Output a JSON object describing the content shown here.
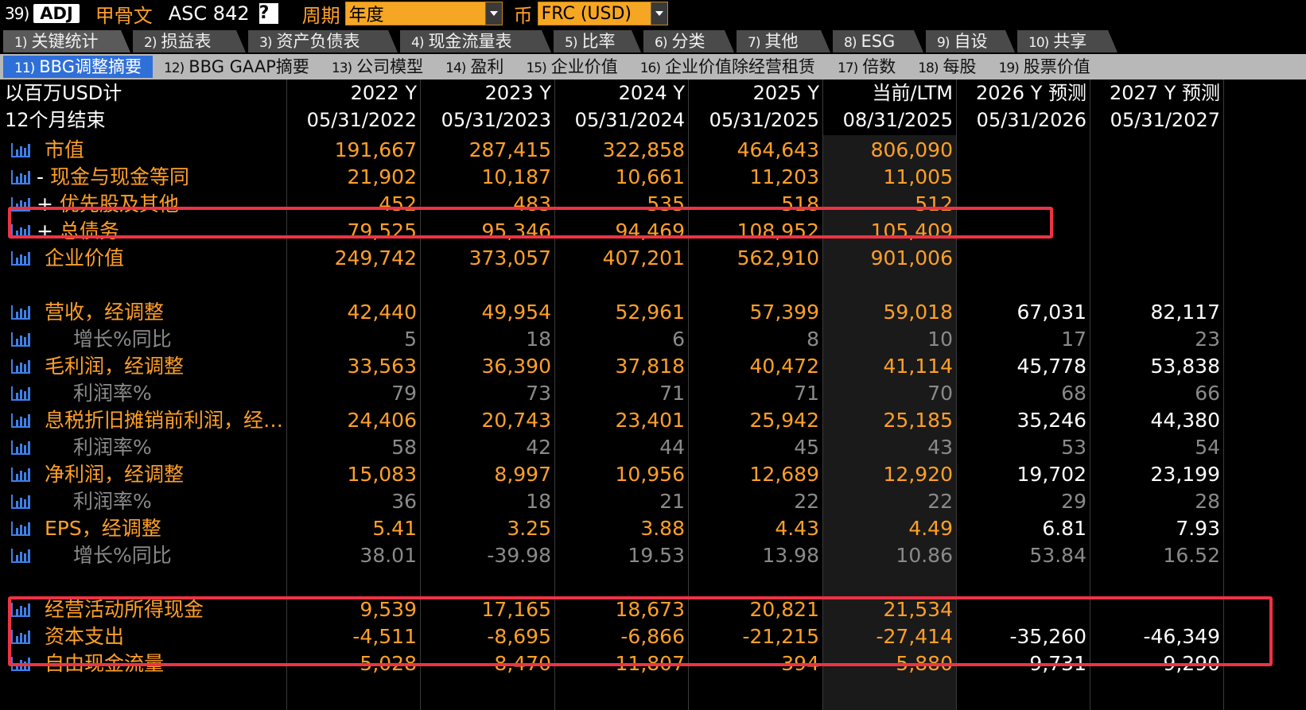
{
  "toolbar": {
    "num": "39)",
    "adj": "ADJ",
    "company": "甲骨文",
    "asc": "ASC 842",
    "help": "?",
    "period_label": "周期",
    "period_value": "年度",
    "currency_label": "币",
    "currency_value": "FRC (USD)"
  },
  "tabs_primary": [
    {
      "n": "1)",
      "label": "关键统计"
    },
    {
      "n": "2)",
      "label": "损益表"
    },
    {
      "n": "3)",
      "label": "资产负债表"
    },
    {
      "n": "4)",
      "label": "现金流量表"
    },
    {
      "n": "5)",
      "label": "比率"
    },
    {
      "n": "6)",
      "label": "分类"
    },
    {
      "n": "7)",
      "label": "其他"
    },
    {
      "n": "8)",
      "label": "ESG"
    },
    {
      "n": "9)",
      "label": "自设"
    },
    {
      "n": "10)",
      "label": "共享"
    }
  ],
  "tabs_secondary": [
    {
      "n": "11)",
      "label": "BBG调整摘要"
    },
    {
      "n": "12)",
      "label": "BBG GAAP摘要"
    },
    {
      "n": "13)",
      "label": "公司模型"
    },
    {
      "n": "14)",
      "label": "盈利"
    },
    {
      "n": "15)",
      "label": "企业价值"
    },
    {
      "n": "16)",
      "label": "企业价值除经营租赁"
    },
    {
      "n": "17)",
      "label": "倍数"
    },
    {
      "n": "18)",
      "label": "每股"
    },
    {
      "n": "19)",
      "label": "股票价值"
    }
  ],
  "header": {
    "unit_label": "以百万USD计",
    "period_end_label": "12个月结束",
    "columns": [
      {
        "year": "2022 Y",
        "date": "05/31/2022"
      },
      {
        "year": "2023 Y",
        "date": "05/31/2023"
      },
      {
        "year": "2024 Y",
        "date": "05/31/2024"
      },
      {
        "year": "2025 Y",
        "date": "05/31/2025"
      },
      {
        "year": "当前/LTM",
        "date": "08/31/2025"
      },
      {
        "year": "2026 Y 预测",
        "date": "05/31/2026"
      },
      {
        "year": "2027 Y 预测",
        "date": "05/31/2027"
      }
    ]
  },
  "rows": [
    {
      "label": "市值",
      "prefix": "",
      "type": "main",
      "values": [
        "191,667",
        "287,415",
        "322,858",
        "464,643",
        "806,090",
        "",
        ""
      ]
    },
    {
      "label": "现金与现金等同",
      "prefix": "- ",
      "type": "mainw",
      "values": [
        "21,902",
        "10,187",
        "10,661",
        "11,203",
        "11,005",
        "",
        ""
      ]
    },
    {
      "label": "优先股及其他",
      "prefix": "+ ",
      "type": "mainw",
      "values": [
        "452",
        "483",
        "535",
        "518",
        "512",
        "",
        ""
      ]
    },
    {
      "label": "总债务",
      "prefix": "+ ",
      "type": "mainw",
      "values": [
        "79,525",
        "95,346",
        "94,469",
        "108,952",
        "105,409",
        "",
        ""
      ]
    },
    {
      "label": "企业价值",
      "prefix": "",
      "type": "main",
      "values": [
        "249,742",
        "373,057",
        "407,201",
        "562,910",
        "901,006",
        "",
        ""
      ]
    },
    {
      "label": "营收，经调整",
      "prefix": "",
      "type": "main",
      "values": [
        "42,440",
        "49,954",
        "52,961",
        "57,399",
        "59,018",
        "67,031",
        "82,117"
      ]
    },
    {
      "label": "增长%同比",
      "prefix": "",
      "type": "sub",
      "values": [
        "5",
        "18",
        "6",
        "8",
        "10",
        "17",
        "23"
      ]
    },
    {
      "label": "毛利润，经调整",
      "prefix": "",
      "type": "main",
      "values": [
        "33,563",
        "36,390",
        "37,818",
        "40,472",
        "41,114",
        "45,778",
        "53,838"
      ]
    },
    {
      "label": "利润率%",
      "prefix": "",
      "type": "sub",
      "values": [
        "79",
        "73",
        "71",
        "71",
        "70",
        "68",
        "66"
      ]
    },
    {
      "label": "息税折旧摊销前利润，经…",
      "prefix": "",
      "type": "main",
      "values": [
        "24,406",
        "20,743",
        "23,401",
        "25,942",
        "25,185",
        "35,246",
        "44,380"
      ]
    },
    {
      "label": "利润率%",
      "prefix": "",
      "type": "sub",
      "values": [
        "58",
        "42",
        "44",
        "45",
        "43",
        "53",
        "54"
      ]
    },
    {
      "label": "净利润，经调整",
      "prefix": "",
      "type": "main",
      "values": [
        "15,083",
        "8,997",
        "10,956",
        "12,689",
        "12,920",
        "19,702",
        "23,199"
      ]
    },
    {
      "label": "利润率%",
      "prefix": "",
      "type": "sub",
      "values": [
        "36",
        "18",
        "21",
        "22",
        "22",
        "29",
        "28"
      ]
    },
    {
      "label": "EPS，经调整",
      "prefix": "",
      "type": "main",
      "values": [
        "5.41",
        "3.25",
        "3.88",
        "4.43",
        "4.49",
        "6.81",
        "7.93"
      ]
    },
    {
      "label": "增长%同比",
      "prefix": "",
      "type": "sub",
      "values": [
        "38.01",
        "-39.98",
        "19.53",
        "13.98",
        "10.86",
        "53.84",
        "16.52"
      ]
    },
    {
      "label": "经营活动所得现金",
      "prefix": "",
      "type": "main",
      "values": [
        "9,539",
        "17,165",
        "18,673",
        "20,821",
        "21,534",
        "",
        ""
      ]
    },
    {
      "label": "资本支出",
      "prefix": "",
      "type": "main",
      "values": [
        "-4,511",
        "-8,695",
        "-6,866",
        "-21,215",
        "-27,414",
        "-35,260",
        "-46,349"
      ]
    },
    {
      "label": "自由现金流量",
      "prefix": "",
      "type": "main",
      "values": [
        "5,028",
        "8,470",
        "11,807",
        "-394",
        "-5,880",
        "-9,731",
        "-9,290"
      ]
    }
  ],
  "colors": {
    "background": "#000000",
    "label_orange": "#ffa028",
    "sub_grey": "#8a8a8a",
    "highlight_red": "#ee3344",
    "active_tab": "#2f6fd8",
    "chart_icon": "#3f7fe8"
  },
  "icons": {
    "row_icon": "bar-chart-icon"
  }
}
